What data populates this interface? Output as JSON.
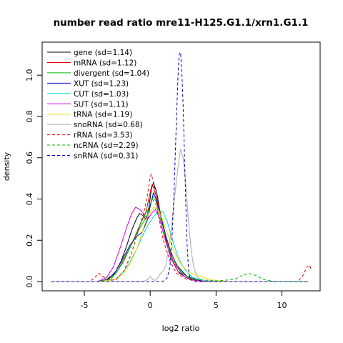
{
  "chart_data": {
    "type": "line",
    "title": "number read ratio mre11-H125.G1.1/xrn1.G1.1",
    "xlabel": "log2 ratio",
    "ylabel": "density",
    "xlim": [
      -8.2,
      12.9
    ],
    "ylim": [
      -0.045,
      1.16
    ],
    "x_ticks": [
      -5,
      0,
      5,
      10
    ],
    "y_ticks": [
      0.0,
      0.2,
      0.4,
      0.6,
      0.8,
      1.0
    ],
    "x_tick_labels": [
      "-5",
      "0",
      "5",
      "10"
    ],
    "y_tick_labels": [
      "0.0",
      "0.2",
      "0.4",
      "0.6",
      "0.8",
      "1.0"
    ],
    "legend_position": "top-left",
    "series": [
      {
        "name": "gene (sd=1.14)",
        "color": "#000000",
        "dash": "solid",
        "points": [
          [
            -7.5,
            0
          ],
          [
            -4,
            0
          ],
          [
            -3.3,
            0.01
          ],
          [
            -2.7,
            0.04
          ],
          [
            -2.2,
            0.1
          ],
          [
            -1.8,
            0.17
          ],
          [
            -1.4,
            0.25
          ],
          [
            -1.0,
            0.31
          ],
          [
            -0.8,
            0.33
          ],
          [
            -0.55,
            0.32
          ],
          [
            -0.3,
            0.3
          ],
          [
            -0.1,
            0.36
          ],
          [
            0.1,
            0.45
          ],
          [
            0.25,
            0.48
          ],
          [
            0.5,
            0.43
          ],
          [
            0.8,
            0.32
          ],
          [
            1.2,
            0.2
          ],
          [
            1.6,
            0.11
          ],
          [
            2.1,
            0.05
          ],
          [
            2.7,
            0.02
          ],
          [
            3.5,
            0.006
          ],
          [
            5,
            0
          ],
          [
            12,
            0
          ]
        ]
      },
      {
        "name": "mRNA (sd=1.12)",
        "color": "#DF0000",
        "dash": "solid",
        "points": [
          [
            -7.5,
            0
          ],
          [
            -4,
            0
          ],
          [
            -3.2,
            0.01
          ],
          [
            -2.6,
            0.04
          ],
          [
            -2.0,
            0.1
          ],
          [
            -1.5,
            0.17
          ],
          [
            -1.0,
            0.24
          ],
          [
            -0.6,
            0.3
          ],
          [
            -0.3,
            0.34
          ],
          [
            -0.05,
            0.42
          ],
          [
            0.15,
            0.47
          ],
          [
            0.3,
            0.45
          ],
          [
            0.6,
            0.38
          ],
          [
            0.9,
            0.3
          ],
          [
            1.3,
            0.18
          ],
          [
            1.8,
            0.09
          ],
          [
            2.4,
            0.04
          ],
          [
            3.2,
            0.012
          ],
          [
            4.5,
            0
          ],
          [
            12,
            0
          ]
        ]
      },
      {
        "name": "divergent (sd=1.04)",
        "color": "#00BB00",
        "dash": "solid",
        "points": [
          [
            -7.5,
            0
          ],
          [
            -4,
            0
          ],
          [
            -3.0,
            0.01
          ],
          [
            -2.5,
            0.05
          ],
          [
            -2.0,
            0.11
          ],
          [
            -1.5,
            0.17
          ],
          [
            -1.1,
            0.22
          ],
          [
            -0.7,
            0.27
          ],
          [
            -0.3,
            0.31
          ],
          [
            0.0,
            0.37
          ],
          [
            0.2,
            0.41
          ],
          [
            0.45,
            0.39
          ],
          [
            0.8,
            0.32
          ],
          [
            1.2,
            0.22
          ],
          [
            1.7,
            0.12
          ],
          [
            2.3,
            0.05
          ],
          [
            3.0,
            0.015
          ],
          [
            4.0,
            0
          ],
          [
            12,
            0
          ]
        ]
      },
      {
        "name": "XUT (sd=1.23)",
        "color": "#0000CC",
        "dash": "solid",
        "points": [
          [
            -7.5,
            0
          ],
          [
            -4,
            0
          ],
          [
            -3.2,
            0.01
          ],
          [
            -2.6,
            0.05
          ],
          [
            -2.0,
            0.12
          ],
          [
            -1.5,
            0.18
          ],
          [
            -1.0,
            0.22
          ],
          [
            -0.6,
            0.24
          ],
          [
            -0.2,
            0.3
          ],
          [
            0.05,
            0.38
          ],
          [
            0.25,
            0.43
          ],
          [
            0.5,
            0.39
          ],
          [
            0.9,
            0.29
          ],
          [
            1.4,
            0.17
          ],
          [
            2.0,
            0.08
          ],
          [
            2.8,
            0.025
          ],
          [
            3.8,
            0.005
          ],
          [
            5,
            0
          ],
          [
            12,
            0
          ]
        ]
      },
      {
        "name": "CUT (sd=1.03)",
        "color": "#00DDDD",
        "dash": "solid",
        "points": [
          [
            -7.5,
            0
          ],
          [
            -4,
            0
          ],
          [
            -2.6,
            0.01
          ],
          [
            -2.0,
            0.05
          ],
          [
            -1.5,
            0.1
          ],
          [
            -1.0,
            0.16
          ],
          [
            -0.6,
            0.22
          ],
          [
            -0.2,
            0.27
          ],
          [
            0.2,
            0.31
          ],
          [
            0.6,
            0.34
          ],
          [
            0.95,
            0.34
          ],
          [
            1.3,
            0.29
          ],
          [
            1.7,
            0.2
          ],
          [
            2.1,
            0.12
          ],
          [
            2.6,
            0.06
          ],
          [
            3.2,
            0.02
          ],
          [
            4.0,
            0.005
          ],
          [
            5,
            0
          ],
          [
            12,
            0
          ]
        ]
      },
      {
        "name": "SUT (sd=1.11)",
        "color": "#DD00DD",
        "dash": "solid",
        "points": [
          [
            -7.5,
            0
          ],
          [
            -4,
            0
          ],
          [
            -3.3,
            0.02
          ],
          [
            -2.8,
            0.07
          ],
          [
            -2.3,
            0.16
          ],
          [
            -1.8,
            0.26
          ],
          [
            -1.4,
            0.33
          ],
          [
            -1.1,
            0.36
          ],
          [
            -0.8,
            0.35
          ],
          [
            -0.5,
            0.33
          ],
          [
            -0.2,
            0.3
          ],
          [
            0.1,
            0.33
          ],
          [
            0.4,
            0.35
          ],
          [
            0.7,
            0.31
          ],
          [
            1.1,
            0.21
          ],
          [
            1.6,
            0.11
          ],
          [
            2.2,
            0.04
          ],
          [
            3.0,
            0.01
          ],
          [
            4.0,
            0
          ],
          [
            12,
            0
          ]
        ]
      },
      {
        "name": "tRNA (sd=1.19)",
        "color": "#EEDD00",
        "dash": "solid",
        "points": [
          [
            -7.5,
            0
          ],
          [
            -4,
            0
          ],
          [
            -2.6,
            0.01
          ],
          [
            -2.0,
            0.04
          ],
          [
            -1.5,
            0.09
          ],
          [
            -1.0,
            0.16
          ],
          [
            -0.6,
            0.24
          ],
          [
            -0.3,
            0.3
          ],
          [
            0.0,
            0.34
          ],
          [
            0.3,
            0.36
          ],
          [
            0.6,
            0.35
          ],
          [
            1.0,
            0.29
          ],
          [
            1.5,
            0.2
          ],
          [
            2.0,
            0.12
          ],
          [
            2.5,
            0.07
          ],
          [
            3.0,
            0.045
          ],
          [
            3.6,
            0.03
          ],
          [
            4.3,
            0.015
          ],
          [
            5,
            0.005
          ],
          [
            6,
            0
          ],
          [
            12,
            0
          ]
        ]
      },
      {
        "name": "snoRNA (sd=0.68)",
        "color": "#AAAAAA",
        "dash": "solid",
        "points": [
          [
            -7.5,
            0
          ],
          [
            -0.5,
            0
          ],
          [
            -0.2,
            0.01
          ],
          [
            0.0,
            0.025
          ],
          [
            0.2,
            0.01
          ],
          [
            0.4,
            0.005
          ],
          [
            0.6,
            0.02
          ],
          [
            0.8,
            0.04
          ],
          [
            1.0,
            0.05
          ],
          [
            1.2,
            0.08
          ],
          [
            1.5,
            0.2
          ],
          [
            1.8,
            0.38
          ],
          [
            2.1,
            0.55
          ],
          [
            2.3,
            0.64
          ],
          [
            2.5,
            0.6
          ],
          [
            2.7,
            0.47
          ],
          [
            2.9,
            0.3
          ],
          [
            3.1,
            0.16
          ],
          [
            3.3,
            0.07
          ],
          [
            3.6,
            0.02
          ],
          [
            4.0,
            0.005
          ],
          [
            5,
            0
          ],
          [
            12,
            0
          ]
        ]
      },
      {
        "name": "rRNA (sd=3.53)",
        "color": "#DF0000",
        "dash": "dashed",
        "points": [
          [
            -7.5,
            0
          ],
          [
            -4.6,
            0
          ],
          [
            -4.2,
            0.02
          ],
          [
            -3.9,
            0.04
          ],
          [
            -3.5,
            0.02
          ],
          [
            -3.1,
            0.005
          ],
          [
            -2.6,
            0.01
          ],
          [
            -2.0,
            0.05
          ],
          [
            -1.4,
            0.14
          ],
          [
            -0.9,
            0.25
          ],
          [
            -0.5,
            0.33
          ],
          [
            -0.2,
            0.42
          ],
          [
            0.0,
            0.51
          ],
          [
            0.1,
            0.52
          ],
          [
            0.3,
            0.46
          ],
          [
            0.6,
            0.33
          ],
          [
            1.0,
            0.2
          ],
          [
            1.5,
            0.1
          ],
          [
            2.0,
            0.04
          ],
          [
            2.8,
            0.01
          ],
          [
            4.0,
            0
          ],
          [
            11.2,
            0
          ],
          [
            11.6,
            0.03
          ],
          [
            11.9,
            0.07
          ],
          [
            12.1,
            0.08
          ],
          [
            12.2,
            0.06
          ]
        ]
      },
      {
        "name": "ncRNA (sd=2.29)",
        "color": "#00BB00",
        "dash": "dashed",
        "points": [
          [
            -7.5,
            0
          ],
          [
            -4,
            0
          ],
          [
            -3.2,
            0.01
          ],
          [
            -2.6,
            0.04
          ],
          [
            -2.0,
            0.1
          ],
          [
            -1.4,
            0.18
          ],
          [
            -0.9,
            0.26
          ],
          [
            -0.5,
            0.31
          ],
          [
            -0.1,
            0.36
          ],
          [
            0.15,
            0.4
          ],
          [
            0.4,
            0.38
          ],
          [
            0.8,
            0.3
          ],
          [
            1.3,
            0.19
          ],
          [
            1.9,
            0.09
          ],
          [
            2.6,
            0.03
          ],
          [
            3.5,
            0.01
          ],
          [
            5.0,
            0.003
          ],
          [
            6.4,
            0.01
          ],
          [
            7.0,
            0.03
          ],
          [
            7.5,
            0.04
          ],
          [
            8.0,
            0.03
          ],
          [
            8.6,
            0.01
          ],
          [
            9.5,
            0
          ],
          [
            12,
            0
          ]
        ]
      },
      {
        "name": "snRNA (sd=0.31)",
        "color": "#0000CC",
        "dash": "dashed",
        "points": [
          [
            -7.5,
            0
          ],
          [
            0.9,
            0
          ],
          [
            1.1,
            0.005
          ],
          [
            1.3,
            0.02
          ],
          [
            1.5,
            0.07
          ],
          [
            1.65,
            0.2
          ],
          [
            1.8,
            0.42
          ],
          [
            1.95,
            0.7
          ],
          [
            2.1,
            0.98
          ],
          [
            2.2,
            1.1
          ],
          [
            2.3,
            1.11
          ],
          [
            2.4,
            1.02
          ],
          [
            2.5,
            0.85
          ],
          [
            2.6,
            0.62
          ],
          [
            2.7,
            0.38
          ],
          [
            2.8,
            0.18
          ],
          [
            2.9,
            0.07
          ],
          [
            3.0,
            0.02
          ],
          [
            3.2,
            0.003
          ],
          [
            3.5,
            0
          ],
          [
            12,
            0
          ]
        ]
      }
    ]
  }
}
